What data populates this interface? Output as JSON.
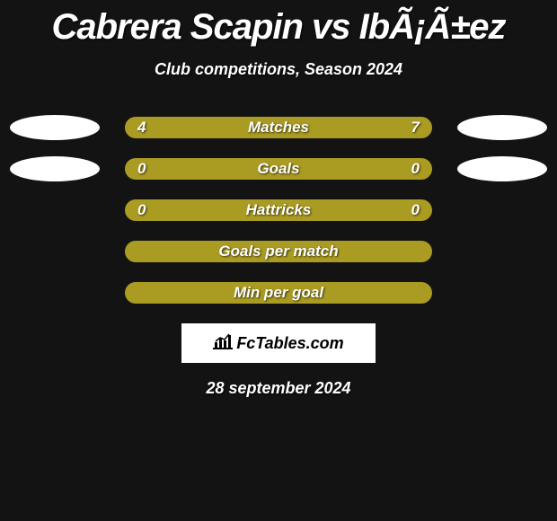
{
  "title": "Cabrera Scapin vs IbÃ¡Ã±ez",
  "subtitle": "Club competitions, Season 2024",
  "date": "28 september 2024",
  "logo_text": "FcTables.com",
  "colors": {
    "background": "#131313",
    "bar": "#aa9c22",
    "bar_alt": "#b8a92a",
    "text": "#ffffff",
    "avatar": "#ffffff"
  },
  "stats": [
    {
      "label": "Matches",
      "left_value": "4",
      "right_value": "7",
      "left_pct": 36,
      "right_pct": 64,
      "show_left_avatar": true,
      "show_right_avatar": true
    },
    {
      "label": "Goals",
      "left_value": "0",
      "right_value": "0",
      "left_pct": 50,
      "right_pct": 50,
      "show_left_avatar": true,
      "show_right_avatar": true
    },
    {
      "label": "Hattricks",
      "left_value": "0",
      "right_value": "0",
      "left_pct": 50,
      "right_pct": 50,
      "show_left_avatar": false,
      "show_right_avatar": false
    },
    {
      "label": "Goals per match",
      "left_value": "",
      "right_value": "",
      "left_pct": 50,
      "right_pct": 50,
      "show_left_avatar": false,
      "show_right_avatar": false
    },
    {
      "label": "Min per goal",
      "left_value": "",
      "right_value": "",
      "left_pct": 50,
      "right_pct": 50,
      "show_left_avatar": false,
      "show_right_avatar": false
    }
  ]
}
